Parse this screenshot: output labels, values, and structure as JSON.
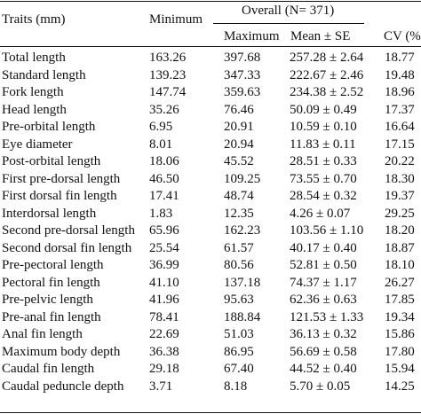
{
  "table": {
    "header": {
      "trait": "Traits (mm)",
      "minimum": "Minimum",
      "overall": "Overall (N= 371)",
      "maximum": "Maximum",
      "mean": "Mean ± SE",
      "cv": "CV (%"
    },
    "rows": [
      [
        "Total length",
        "163.26",
        "397.68",
        "257.28 ± 2.64",
        "18.77"
      ],
      [
        "Standard length",
        "139.23",
        "347.33",
        "222.67 ± 2.46",
        "19.48"
      ],
      [
        "Fork length",
        "147.74",
        "359.63",
        "234.38 ± 2.52",
        "18.96"
      ],
      [
        "Head length",
        "35.26",
        "76.46",
        "50.09 ± 0.49",
        "17.37"
      ],
      [
        "Pre-orbital length",
        "6.95",
        "20.91",
        "10.59 ± 0.10",
        "16.64"
      ],
      [
        "Eye diameter",
        "8.01",
        "20.94",
        "11.83 ± 0.11",
        "17.15"
      ],
      [
        "Post-orbital length",
        "18.06",
        "45.52",
        "28.51 ± 0.33",
        "20.22"
      ],
      [
        "First pre-dorsal length",
        "46.50",
        "109.25",
        "73.55 ± 0.70",
        "18.30"
      ],
      [
        "First dorsal fin length",
        "17.41",
        "48.74",
        "28.54 ± 0.32",
        "19.37"
      ],
      [
        "Interdorsal length",
        "1.83",
        "12.35",
        "4.26 ± 0.07",
        "29.25"
      ],
      [
        "Second pre-dorsal length",
        "65.96",
        "162.23",
        "103.56 ± 1.10",
        "18.20"
      ],
      [
        "Second dorsal fin length",
        "25.54",
        "61.57",
        "40.17 ± 0.40",
        "18.87"
      ],
      [
        "Pre-pectoral length",
        "36.99",
        "80.56",
        "52.81 ± 0.50",
        "18.10"
      ],
      [
        "Pectoral fin length",
        "41.10",
        "137.18",
        "74.37 ± 1.17",
        "26.27"
      ],
      [
        "Pre-pelvic length",
        "41.96",
        "95.63",
        "62.36 ± 0.63",
        "17.85"
      ],
      [
        "Pre-anal fin length",
        "78.41",
        "188.84",
        "121.53 ± 1.33",
        "19.34"
      ],
      [
        "Anal fin length",
        "22.69",
        "51.03",
        "36.13 ± 0.32",
        "15.86"
      ],
      [
        "Maximum body depth",
        "36.38",
        "86.95",
        "56.69 ± 0.58",
        "17.80"
      ],
      [
        "Caudal fin length",
        "29.18",
        "67.40",
        "44.52 ± 0.40",
        "15.94"
      ],
      [
        "Caudal peduncle depth",
        "3.71",
        "8.18",
        "5.70 ± 0.05",
        "14.25"
      ]
    ]
  }
}
